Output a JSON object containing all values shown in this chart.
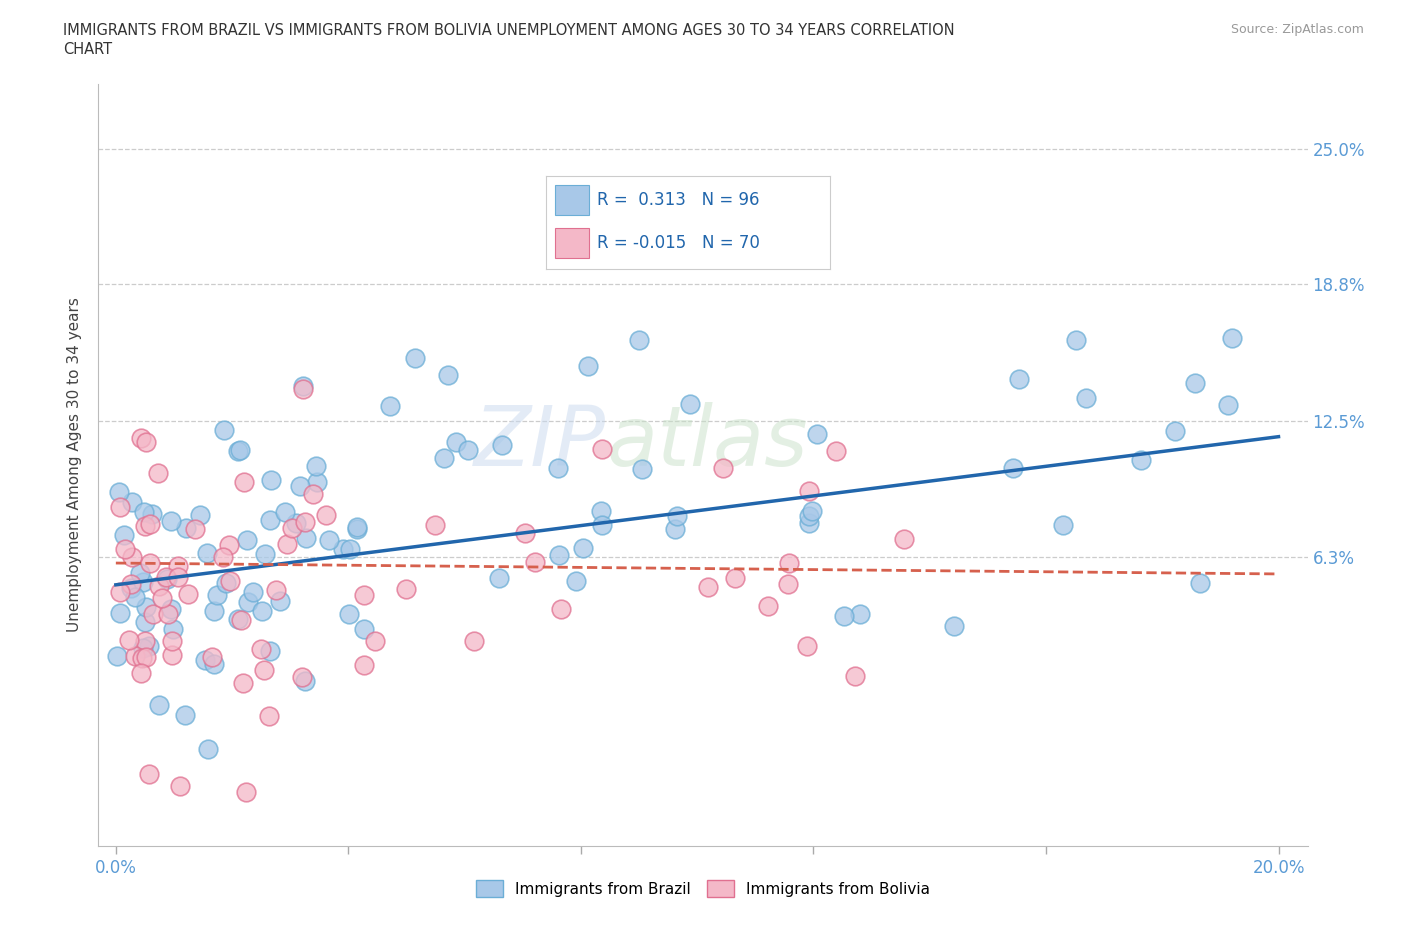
{
  "title_line1": "IMMIGRANTS FROM BRAZIL VS IMMIGRANTS FROM BOLIVIA UNEMPLOYMENT AMONG AGES 30 TO 34 YEARS CORRELATION",
  "title_line2": "CHART",
  "source_text": "Source: ZipAtlas.com",
  "ylabel": "Unemployment Among Ages 30 to 34 years",
  "xlim": [
    -0.003,
    0.205
  ],
  "ylim": [
    -0.07,
    0.28
  ],
  "xtick_positions": [
    0.0,
    0.04,
    0.08,
    0.12,
    0.16,
    0.2
  ],
  "ytick_positions": [
    0.063,
    0.125,
    0.188,
    0.25
  ],
  "ytick_labels": [
    "6.3%",
    "12.5%",
    "18.8%",
    "25.0%"
  ],
  "brazil_color": "#a8c8e8",
  "brazil_edge_color": "#6baed6",
  "bolivia_color": "#f4b8c8",
  "bolivia_edge_color": "#e07090",
  "brazil_line_color": "#2166ac",
  "bolivia_line_color": "#d6604d",
  "R_brazil": 0.313,
  "N_brazil": 96,
  "R_bolivia": -0.015,
  "N_bolivia": 70,
  "brazil_trend_y_start": 0.05,
  "brazil_trend_y_end": 0.118,
  "bolivia_trend_y_start": 0.06,
  "bolivia_trend_y_end": 0.055,
  "watermark_zip": "ZIP",
  "watermark_atlas": "atlas",
  "tick_color": "#5b9bd5",
  "legend_brazil_label": "Immigrants from Brazil",
  "legend_bolivia_label": "Immigrants from Bolivia",
  "seed": 12345
}
